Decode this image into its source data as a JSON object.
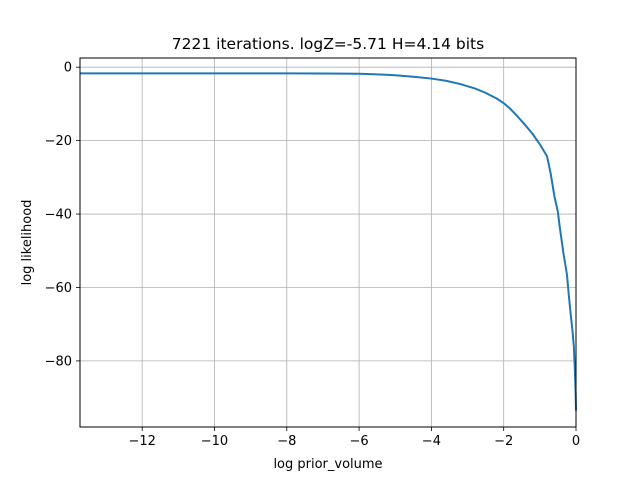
{
  "chart_data": {
    "type": "line",
    "title": "7221 iterations. logZ=-5.71 H=4.14 bits",
    "xlabel": "log prior_volume",
    "ylabel": "log likelihood",
    "xlim": [
      -13.72,
      0
    ],
    "ylim": [
      -98,
      2.5
    ],
    "xticks": [
      -12,
      -10,
      -8,
      -6,
      -4,
      -2,
      0
    ],
    "xtick_labels": [
      "−12",
      "−10",
      "−8",
      "−6",
      "−4",
      "−2",
      "0"
    ],
    "yticks": [
      0,
      -20,
      -40,
      -60,
      -80
    ],
    "ytick_labels": [
      "0",
      "−20",
      "−40",
      "−60",
      "−80"
    ],
    "grid": true,
    "series": [
      {
        "color": "#1f77b4",
        "x": [
          -13.72,
          -12,
          -10,
          -8,
          -7,
          -6,
          -5.5,
          -5,
          -4.5,
          -4,
          -3.6,
          -3.2,
          -2.8,
          -2.5,
          -2.2,
          -2.0,
          -1.8,
          -1.6,
          -1.4,
          -1.2,
          -1.0,
          -0.8,
          -0.7,
          -0.6,
          -0.5,
          -0.45,
          -0.4,
          -0.35,
          -0.3,
          -0.25,
          -0.2,
          -0.15,
          -0.1,
          -0.06,
          -0.03,
          -0.01,
          0
        ],
        "y": [
          -1.7,
          -1.7,
          -1.7,
          -1.7,
          -1.72,
          -1.8,
          -1.95,
          -2.2,
          -2.6,
          -3.1,
          -3.7,
          -4.6,
          -5.8,
          -7.0,
          -8.5,
          -9.8,
          -11.5,
          -13.6,
          -15.8,
          -18.2,
          -21.0,
          -24.3,
          -29.0,
          -35.0,
          -39.5,
          -43.5,
          -47.0,
          -50.5,
          -53.5,
          -56.5,
          -62.0,
          -67.0,
          -71.5,
          -76.0,
          -83.0,
          -89.0,
          -93.5
        ]
      }
    ]
  }
}
